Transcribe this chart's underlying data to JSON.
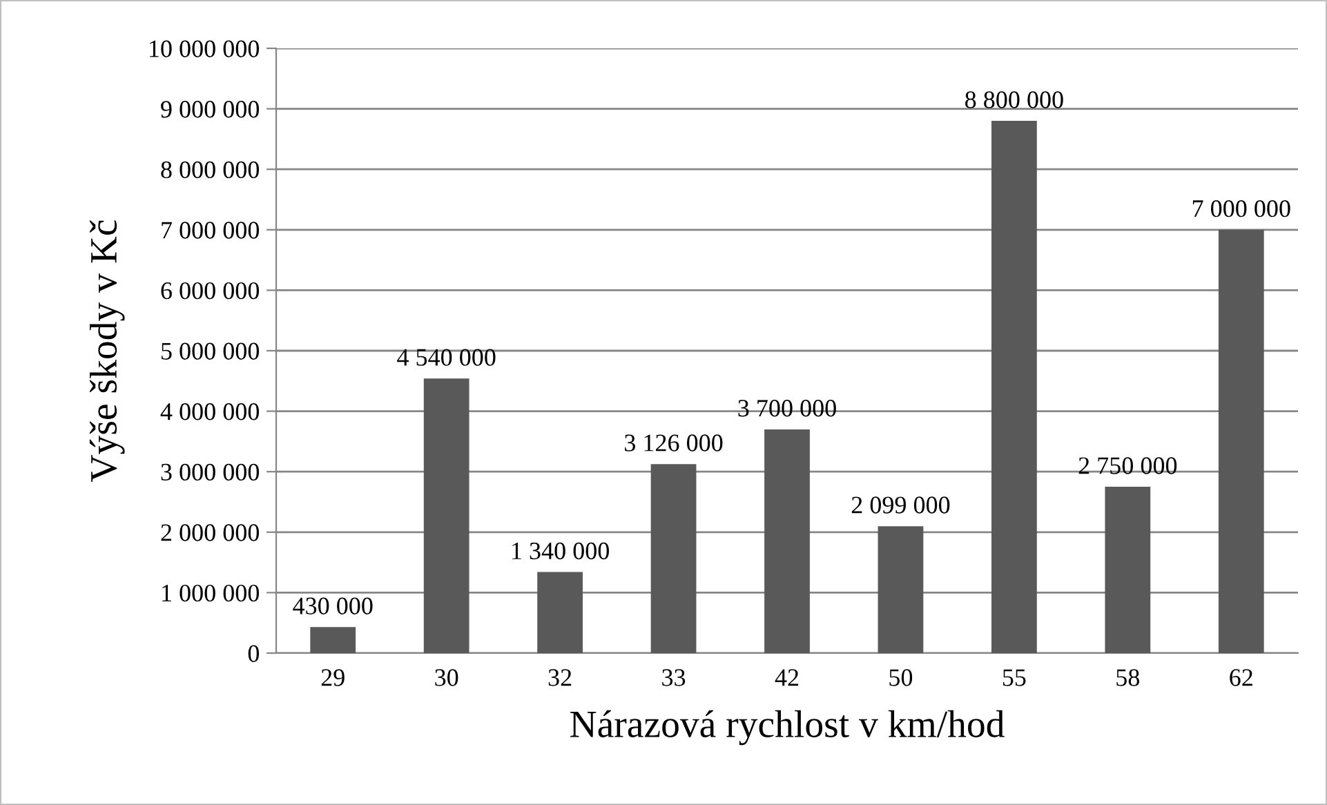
{
  "chart_data": {
    "type": "bar",
    "xlabel": "Nárazová rychlost v km/hod",
    "ylabel": "Výše škody v Kč",
    "categories": [
      "29",
      "30",
      "32",
      "33",
      "42",
      "50",
      "55",
      "58",
      "62"
    ],
    "values": [
      430000,
      4540000,
      1340000,
      3126000,
      3700000,
      2099000,
      8800000,
      2750000,
      7000000
    ],
    "value_labels": [
      "430 000",
      "4 540 000",
      "1 340 000",
      "3 126 000",
      "3 700 000",
      "2 099 000",
      "8 800 000",
      "2 750 000",
      "7 000 000"
    ],
    "color": "#595959",
    "ylim": [
      0,
      10000000
    ],
    "yticks": [
      0,
      {
        "value": 1000000,
        "label": "1 000 000"
      },
      {
        "value": 2000000,
        "label": "2 000 000"
      },
      {
        "value": 3000000,
        "label": "3 000 000"
      },
      {
        "value": 4000000,
        "label": "4 000 000"
      },
      {
        "value": 5000000,
        "label": "5 000 000"
      },
      {
        "value": 6000000,
        "label": "6 000 000"
      },
      {
        "value": 7000000,
        "label": "7 000 000"
      },
      {
        "value": 8000000,
        "label": "8 000 000"
      },
      {
        "value": 9000000,
        "label": "9 000 000"
      },
      {
        "value": 10000000,
        "label": "10 000 000"
      }
    ],
    "grid": "y",
    "legend": false
  }
}
